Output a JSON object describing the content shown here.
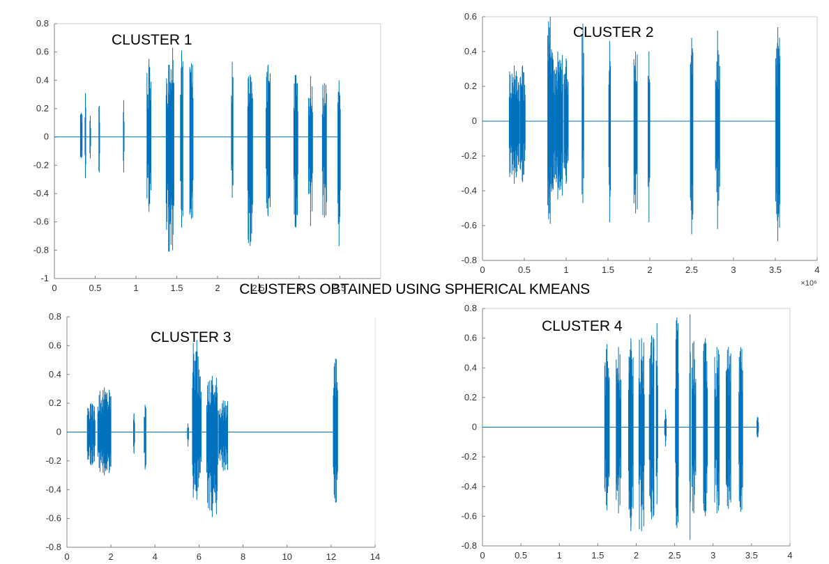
{
  "title": "CLUSTERS OBTAINED USING SPHERICAL KMEANS",
  "colors": {
    "signal": "#0072BD",
    "axis": "#808080",
    "text": "#333333"
  },
  "chart_data": [
    {
      "type": "line",
      "title": "CLUSTER 1",
      "xlim": [
        0,
        4
      ],
      "ylim": [
        -1,
        0.8
      ],
      "xticks": [
        0,
        0.5,
        1,
        1.5,
        2,
        2.5,
        3,
        3.5
      ],
      "xtick_labels": [
        "0",
        "0.5",
        "1",
        "1.5",
        "2",
        "2.5",
        "3",
        "3.5"
      ],
      "yticks": [
        0.8,
        0.6,
        0.4,
        0.2,
        0,
        -0.2,
        -0.4,
        -0.6,
        -0.8,
        -1
      ],
      "ytick_labels": [
        "0.8",
        "0.6",
        "0.4",
        "0.2",
        "0",
        "-0.2",
        "-0.4",
        "-0.6",
        "-0.8",
        "-1"
      ],
      "baseline_end": 3.5,
      "bursts": [
        {
          "x": 0.33,
          "w": 0.02,
          "max": 0.17,
          "min": -0.15
        },
        {
          "x": 0.38,
          "w": 0.01,
          "max": 0.31,
          "min": -0.29
        },
        {
          "x": 0.44,
          "w": 0.01,
          "max": 0.15,
          "min": -0.15
        },
        {
          "x": 0.55,
          "w": 0.01,
          "max": 0.22,
          "min": -0.25
        },
        {
          "x": 0.85,
          "w": 0.01,
          "max": 0.26,
          "min": -0.25
        },
        {
          "x": 1.16,
          "w": 0.05,
          "max": 0.55,
          "min": -0.53
        },
        {
          "x": 1.4,
          "w": 0.06,
          "max": 0.51,
          "min": -0.81
        },
        {
          "x": 1.45,
          "w": 0.03,
          "max": 0.63,
          "min": -0.8
        },
        {
          "x": 1.56,
          "w": 0.03,
          "max": 0.61,
          "min": -0.64
        },
        {
          "x": 1.68,
          "w": 0.04,
          "max": 0.52,
          "min": -0.58
        },
        {
          "x": 2.18,
          "w": 0.02,
          "max": 0.53,
          "min": -0.43
        },
        {
          "x": 2.4,
          "w": 0.06,
          "max": 0.44,
          "min": -0.77
        },
        {
          "x": 2.62,
          "w": 0.05,
          "max": 0.51,
          "min": -0.56
        },
        {
          "x": 2.96,
          "w": 0.05,
          "max": 0.44,
          "min": -0.64
        },
        {
          "x": 3.14,
          "w": 0.05,
          "max": 0.43,
          "min": -0.63
        },
        {
          "x": 3.31,
          "w": 0.05,
          "max": 0.38,
          "min": -0.57
        },
        {
          "x": 3.49,
          "w": 0.03,
          "max": 0.4,
          "min": -0.77
        }
      ]
    },
    {
      "type": "line",
      "title": "CLUSTER 2",
      "xlim": [
        0,
        4
      ],
      "ylim": [
        -0.8,
        0.6
      ],
      "xticks": [
        0,
        0.5,
        1,
        1.5,
        2,
        2.5,
        3,
        3.5,
        4
      ],
      "xtick_labels": [
        "0",
        "0.5",
        "1",
        "1.5",
        "2",
        "2.5",
        "3",
        "3.5",
        "4"
      ],
      "yticks": [
        0.6,
        0.4,
        0.2,
        0,
        -0.2,
        -0.4,
        -0.6,
        -0.8
      ],
      "ytick_labels": [
        "0.6",
        "0.4",
        "0.2",
        "0",
        "-0.2",
        "-0.4",
        "-0.6",
        "-0.8"
      ],
      "x_exponent_label": "×10⁶",
      "baseline_end": 3.55,
      "bursts": [
        {
          "x": 0.38,
          "w": 0.12,
          "max": 0.32,
          "min": -0.36
        },
        {
          "x": 0.48,
          "w": 0.06,
          "max": 0.32,
          "min": -0.35
        },
        {
          "x": 0.81,
          "w": 0.06,
          "max": 0.6,
          "min": -0.59
        },
        {
          "x": 0.9,
          "w": 0.12,
          "max": 0.4,
          "min": -0.45
        },
        {
          "x": 1.0,
          "w": 0.05,
          "max": 0.36,
          "min": -0.36
        },
        {
          "x": 1.2,
          "w": 0.02,
          "max": 0.56,
          "min": -0.47
        },
        {
          "x": 1.52,
          "w": 0.02,
          "max": 0.46,
          "min": -0.58
        },
        {
          "x": 1.83,
          "w": 0.04,
          "max": 0.4,
          "min": -0.53
        },
        {
          "x": 1.99,
          "w": 0.02,
          "max": 0.4,
          "min": -0.58
        },
        {
          "x": 2.5,
          "w": 0.03,
          "max": 0.48,
          "min": -0.65
        },
        {
          "x": 2.81,
          "w": 0.05,
          "max": 0.52,
          "min": -0.62
        },
        {
          "x": 3.53,
          "w": 0.05,
          "max": 0.54,
          "min": -0.69
        }
      ]
    },
    {
      "type": "line",
      "title": "CLUSTER 3",
      "xlim": [
        0,
        14
      ],
      "ylim": [
        -0.8,
        0.8
      ],
      "xticks": [
        0,
        2,
        4,
        6,
        8,
        10,
        12,
        14
      ],
      "xtick_labels": [
        "0",
        "2",
        "4",
        "6",
        "8",
        "10",
        "12",
        "14"
      ],
      "yticks": [
        0.8,
        0.6,
        0.4,
        0.2,
        0,
        -0.2,
        -0.4,
        -0.6,
        -0.8
      ],
      "ytick_labels": [
        "0.8",
        "0.6",
        "0.4",
        "0.2",
        "0",
        "-0.2",
        "-0.4",
        "-0.6",
        "-0.8"
      ],
      "baseline_end": 12.2,
      "bursts": [
        {
          "x": 1.1,
          "w": 0.35,
          "max": 0.2,
          "min": -0.23
        },
        {
          "x": 1.7,
          "w": 0.6,
          "max": 0.31,
          "min": -0.3
        },
        {
          "x": 3.05,
          "w": 0.05,
          "max": 0.13,
          "min": -0.15
        },
        {
          "x": 3.55,
          "w": 0.08,
          "max": 0.19,
          "min": -0.26
        },
        {
          "x": 5.5,
          "w": 0.05,
          "max": 0.06,
          "min": -0.1
        },
        {
          "x": 5.9,
          "w": 0.4,
          "max": 0.64,
          "min": -0.47
        },
        {
          "x": 6.6,
          "w": 0.5,
          "max": 0.39,
          "min": -0.59
        },
        {
          "x": 7.1,
          "w": 0.4,
          "max": 0.22,
          "min": -0.27
        },
        {
          "x": 12.2,
          "w": 0.2,
          "max": 0.51,
          "min": -0.49
        }
      ]
    },
    {
      "type": "line",
      "title": "CLUSTER 4",
      "xlim": [
        0,
        4
      ],
      "ylim": [
        -0.8,
        0.8
      ],
      "xticks": [
        0,
        0.5,
        1,
        1.5,
        2,
        2.5,
        3,
        3.5,
        4
      ],
      "xtick_labels": [
        "0",
        "0.5",
        "1",
        "1.5",
        "2",
        "2.5",
        "3",
        "3.5",
        "4"
      ],
      "yticks": [
        0.8,
        0.6,
        0.4,
        0.2,
        0,
        -0.2,
        -0.4,
        -0.6,
        -0.8
      ],
      "ytick_labels": [
        "0.8",
        "0.6",
        "0.4",
        "0.2",
        "0",
        "-0.2",
        "-0.4",
        "-0.6",
        "-0.8"
      ],
      "baseline_end": 3.6,
      "bursts": [
        {
          "x": 1.62,
          "w": 0.06,
          "max": 0.56,
          "min": -0.56
        },
        {
          "x": 1.77,
          "w": 0.06,
          "max": 0.54,
          "min": -0.58
        },
        {
          "x": 1.93,
          "w": 0.06,
          "max": 0.6,
          "min": -0.7
        },
        {
          "x": 2.07,
          "w": 0.07,
          "max": 0.6,
          "min": -0.7
        },
        {
          "x": 2.2,
          "w": 0.06,
          "max": 0.62,
          "min": -0.62
        },
        {
          "x": 2.27,
          "w": 0.02,
          "max": 0.7,
          "min": -0.52
        },
        {
          "x": 2.38,
          "w": 0.02,
          "max": 0.12,
          "min": -0.13
        },
        {
          "x": 2.53,
          "w": 0.04,
          "max": 0.74,
          "min": -0.68
        },
        {
          "x": 2.7,
          "w": 0.01,
          "max": 0.76,
          "min": -0.76
        },
        {
          "x": 2.75,
          "w": 0.05,
          "max": 0.58,
          "min": -0.58
        },
        {
          "x": 2.9,
          "w": 0.05,
          "max": 0.6,
          "min": -0.6
        },
        {
          "x": 3.05,
          "w": 0.06,
          "max": 0.54,
          "min": -0.58
        },
        {
          "x": 3.2,
          "w": 0.06,
          "max": 0.54,
          "min": -0.55
        },
        {
          "x": 3.36,
          "w": 0.05,
          "max": 0.54,
          "min": -0.57
        },
        {
          "x": 3.58,
          "w": 0.02,
          "max": 0.07,
          "min": -0.07
        }
      ]
    }
  ]
}
